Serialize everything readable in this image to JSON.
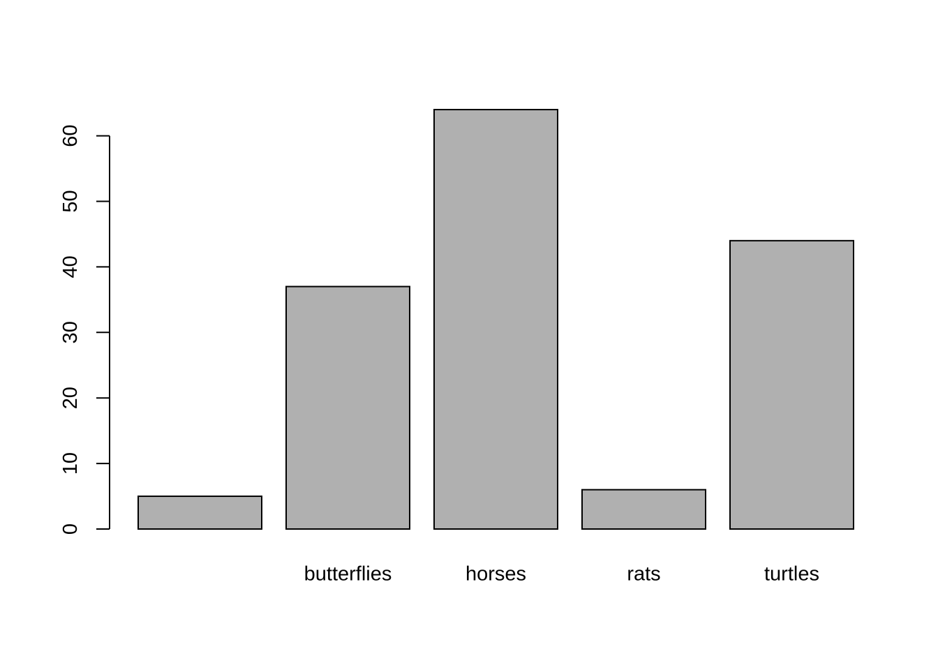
{
  "chart_data": {
    "type": "bar",
    "categories": [
      "",
      "butterflies",
      "horses",
      "rats",
      "turtles"
    ],
    "values": [
      5,
      37,
      64,
      6,
      44
    ],
    "title": "",
    "xlabel": "",
    "ylabel": "",
    "ylim": [
      0,
      64
    ],
    "yticks": [
      "0",
      "10",
      "20",
      "30",
      "40",
      "50",
      "60"
    ],
    "bar_color": "#b0b0b0",
    "border_color": "#000000",
    "grid": false,
    "legend": "none"
  }
}
